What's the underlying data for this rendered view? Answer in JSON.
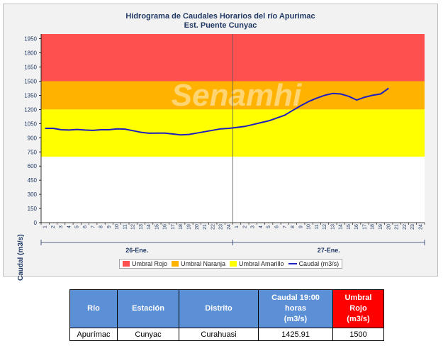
{
  "chart_data": {
    "type": "line",
    "title": "Hidrograma de Caudales Horarios del río Apurimac",
    "subtitle": "Est. Puente Cunyac",
    "ylabel": "Caudal  (m3/s)",
    "xlabel": "",
    "ylim": [
      0,
      2000
    ],
    "y_ticks": [
      0,
      150,
      300,
      450,
      600,
      750,
      900,
      1050,
      1200,
      1350,
      1500,
      1650,
      1800,
      1950
    ],
    "x_ticks": [
      "1",
      "2",
      "3",
      "4",
      "5",
      "6",
      "7",
      "8",
      "9",
      "10",
      "11",
      "12",
      "13",
      "14",
      "15",
      "16",
      "17",
      "18",
      "19",
      "20",
      "21",
      "22",
      "23",
      "24",
      "1",
      "2",
      "3",
      "4",
      "5",
      "6",
      "7",
      "8",
      "9",
      "10",
      "11",
      "12",
      "13",
      "14",
      "15",
      "16",
      "17",
      "18",
      "19",
      "20",
      "21",
      "22",
      "23",
      "24"
    ],
    "day_labels": [
      "26-Ene.",
      "27-Ene."
    ],
    "watermark": "Senamhi",
    "thresholds": [
      {
        "name": "Umbral Rojo",
        "from": 1500,
        "to": 2000,
        "color": "#ff5050"
      },
      {
        "name": "Umbral Naranja",
        "from": 1200,
        "to": 1500,
        "color": "#ffb200"
      },
      {
        "name": "Umbral Amarillo",
        "from": 700,
        "to": 1200,
        "color": "#ffff00"
      }
    ],
    "series": [
      {
        "name": "Caudal (m3/s)",
        "color": "#1f1fbf",
        "x": [
          0,
          1,
          2,
          3,
          4,
          5,
          6,
          7,
          8,
          9,
          10,
          11,
          12,
          13,
          14,
          15,
          16,
          17,
          18,
          19,
          20,
          21,
          22,
          23,
          24,
          25,
          26,
          27,
          28,
          29,
          30,
          31,
          32,
          33,
          34,
          35,
          36,
          37,
          38,
          39,
          40,
          41,
          42,
          43
        ],
        "values": [
          1000,
          1000,
          985,
          982,
          988,
          982,
          978,
          985,
          985,
          995,
          992,
          975,
          958,
          948,
          950,
          950,
          940,
          930,
          935,
          950,
          965,
          980,
          995,
          1000,
          1010,
          1020,
          1040,
          1060,
          1080,
          1110,
          1140,
          1190,
          1240,
          1285,
          1320,
          1350,
          1370,
          1365,
          1340,
          1300,
          1330,
          1350,
          1365,
          1425
        ]
      }
    ]
  },
  "legend": [
    {
      "label": "Umbral Rojo",
      "color": "#ff5050",
      "kind": "box"
    },
    {
      "label": "Umbral Naranja",
      "color": "#ffb200",
      "kind": "box"
    },
    {
      "label": "Umbral Amarillo",
      "color": "#ffff00",
      "kind": "box"
    },
    {
      "label": "Caudal (m3/s)",
      "color": "#1f1fbf",
      "kind": "line"
    }
  ],
  "table": {
    "headers": [
      "Río",
      "Estación",
      "Distrito",
      "Caudal 19:00 horas (m3/s)",
      "Umbral Rojo (m3/s)"
    ],
    "header_lines": {
      "caudal": [
        "Caudal 19:00",
        "horas",
        "(m3/s)"
      ],
      "umbral": [
        "Umbral",
        "Rojo",
        "(m3/s)"
      ]
    },
    "row": [
      "Apurímac",
      "Cunyac",
      "Curahuasi",
      "1425.91",
      "1500"
    ]
  }
}
